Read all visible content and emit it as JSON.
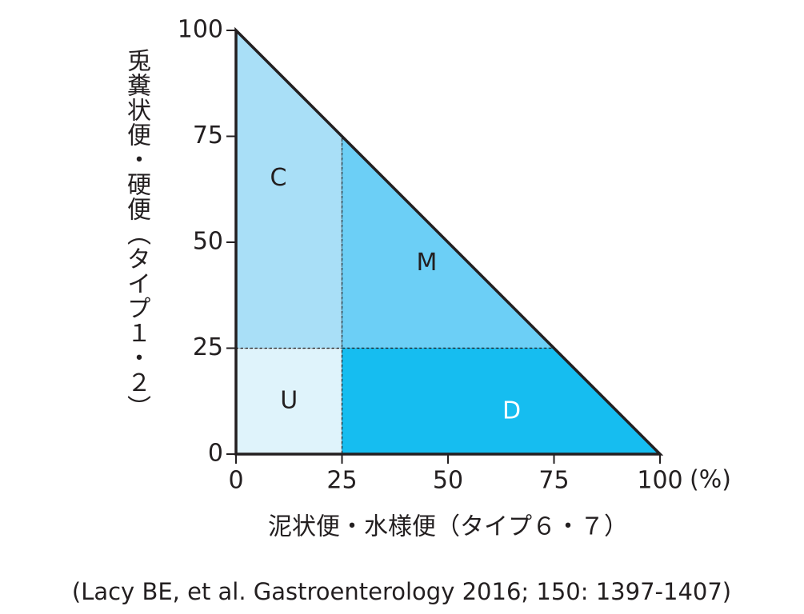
{
  "chart_data": {
    "type": "region",
    "x_label": "泥状便・水様便（タイプ６・７）",
    "y_label": "兎糞状便・硬便（タイプ１・２）",
    "unit": "(%)",
    "xlim": [
      0,
      100
    ],
    "ylim": [
      0,
      100
    ],
    "xticks": [
      0,
      25,
      50,
      75,
      100
    ],
    "yticks": [
      0,
      25,
      50,
      75,
      100
    ],
    "regions": [
      {
        "name": "U",
        "x_range": [
          0,
          25
        ],
        "y_range": [
          0,
          25
        ],
        "color": "#dff3fb"
      },
      {
        "name": "C",
        "x_range": [
          0,
          25
        ],
        "y_range": [
          25,
          100
        ],
        "color": "#a9dff7"
      },
      {
        "name": "M",
        "x_range": [
          25,
          75
        ],
        "y_range": [
          25,
          75
        ],
        "color": "#6ccff6"
      },
      {
        "name": "D",
        "x_range": [
          25,
          100
        ],
        "y_range": [
          0,
          25
        ],
        "color": "#16bdf0"
      }
    ],
    "source": "(Lacy BE, et al. Gastroenterology 2016; 150: 1397-1407)"
  }
}
